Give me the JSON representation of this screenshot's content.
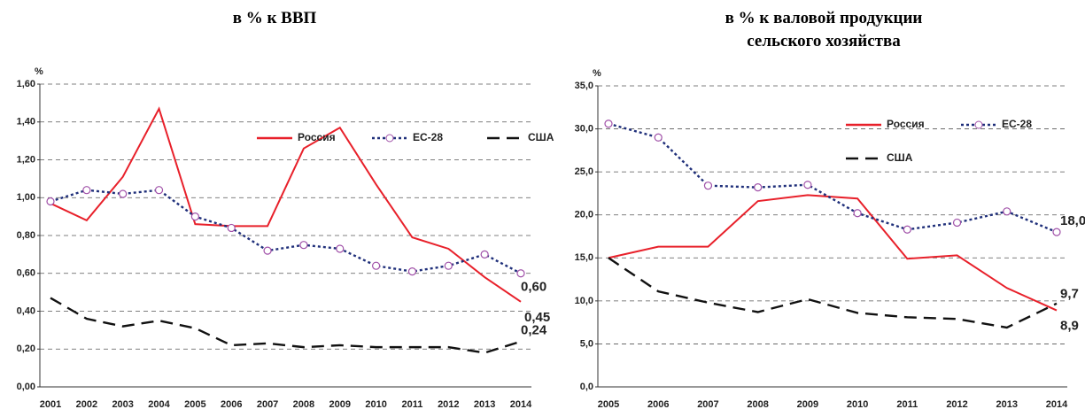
{
  "chart_data": [
    {
      "type": "line",
      "title": "в % к ВВП",
      "y_label": "%",
      "categories": [
        "2001",
        "2002",
        "2003",
        "2004",
        "2005",
        "2006",
        "2007",
        "2008",
        "2009",
        "2010",
        "2011",
        "2012",
        "2013",
        "2014"
      ],
      "ylim": [
        0,
        1.6
      ],
      "yticks": [
        {
          "value": 0,
          "label": "0,00"
        },
        {
          "value": 0.2,
          "label": "0,20"
        },
        {
          "value": 0.4,
          "label": "0,40"
        },
        {
          "value": 0.6,
          "label": "0,60"
        },
        {
          "value": 0.8,
          "label": "0,80"
        },
        {
          "value": 1.0,
          "label": "1,00"
        },
        {
          "value": 1.2,
          "label": "1,20"
        },
        {
          "value": 1.4,
          "label": "1,40"
        },
        {
          "value": 1.6,
          "label": "1,60"
        }
      ],
      "grid": true,
      "legend_columns": 3,
      "series": [
        {
          "name": "Россия",
          "color": "#e8202a",
          "style": "solid",
          "values": [
            0.97,
            0.88,
            1.11,
            1.47,
            0.86,
            0.85,
            0.85,
            1.26,
            1.37,
            1.07,
            0.79,
            0.73,
            0.58,
            0.45
          ],
          "value_labels": [
            null,
            null,
            null,
            null,
            null,
            null,
            null,
            null,
            null,
            null,
            null,
            null,
            null,
            "0,45"
          ]
        },
        {
          "name": "ЕС-28",
          "color": "#1f2f7a",
          "marker_color": "#a050a8",
          "style": "dotted",
          "values": [
            0.98,
            1.04,
            1.02,
            1.04,
            0.9,
            0.84,
            0.72,
            0.75,
            0.73,
            0.64,
            0.61,
            0.64,
            0.7,
            0.6
          ],
          "value_labels": [
            null,
            null,
            null,
            null,
            null,
            null,
            null,
            null,
            null,
            null,
            null,
            null,
            null,
            "0,60"
          ]
        },
        {
          "name": "США",
          "color": "#111111",
          "style": "dashed",
          "values": [
            0.47,
            0.36,
            0.32,
            0.35,
            0.31,
            0.22,
            0.23,
            0.21,
            0.22,
            0.21,
            0.21,
            0.21,
            0.18,
            0.24
          ],
          "value_labels": [
            null,
            null,
            null,
            null,
            null,
            null,
            null,
            null,
            null,
            null,
            null,
            null,
            null,
            "0,24"
          ]
        }
      ]
    },
    {
      "type": "line",
      "title": "в % к валовой продукции сельского хозяйства",
      "y_label": "%",
      "categories": [
        "2005",
        "2006",
        "2007",
        "2008",
        "2009",
        "2010",
        "2011",
        "2012",
        "2013",
        "2014"
      ],
      "ylim": [
        0,
        35
      ],
      "yticks": [
        {
          "value": 0,
          "label": "0,0"
        },
        {
          "value": 5,
          "label": "5,0"
        },
        {
          "value": 10,
          "label": "10,0"
        },
        {
          "value": 15,
          "label": "15,0"
        },
        {
          "value": 20,
          "label": "20,0"
        },
        {
          "value": 25,
          "label": "25,0"
        },
        {
          "value": 30,
          "label": "30,0"
        },
        {
          "value": 35,
          "label": "35,0"
        }
      ],
      "grid": true,
      "legend_columns": 2,
      "series": [
        {
          "name": "Россия",
          "color": "#e8202a",
          "style": "solid",
          "values": [
            15.0,
            16.3,
            16.3,
            21.6,
            22.3,
            21.9,
            14.9,
            15.3,
            11.5,
            8.9
          ],
          "value_labels": [
            null,
            null,
            null,
            null,
            null,
            null,
            null,
            null,
            null,
            "8,9"
          ]
        },
        {
          "name": "ЕС-28",
          "color": "#1f2f7a",
          "marker_color": "#a050a8",
          "style": "dotted",
          "values": [
            30.6,
            29.0,
            23.4,
            23.2,
            23.5,
            20.2,
            18.3,
            19.1,
            20.4,
            18.0
          ],
          "value_labels": [
            null,
            null,
            null,
            null,
            null,
            null,
            null,
            null,
            null,
            "18,0"
          ]
        },
        {
          "name": "США",
          "color": "#111111",
          "style": "dashed",
          "values": [
            15.0,
            11.1,
            9.8,
            8.7,
            10.2,
            8.6,
            8.1,
            7.9,
            6.9,
            9.7
          ],
          "value_labels": [
            null,
            null,
            null,
            null,
            null,
            null,
            null,
            null,
            null,
            "9,7"
          ]
        }
      ]
    }
  ]
}
